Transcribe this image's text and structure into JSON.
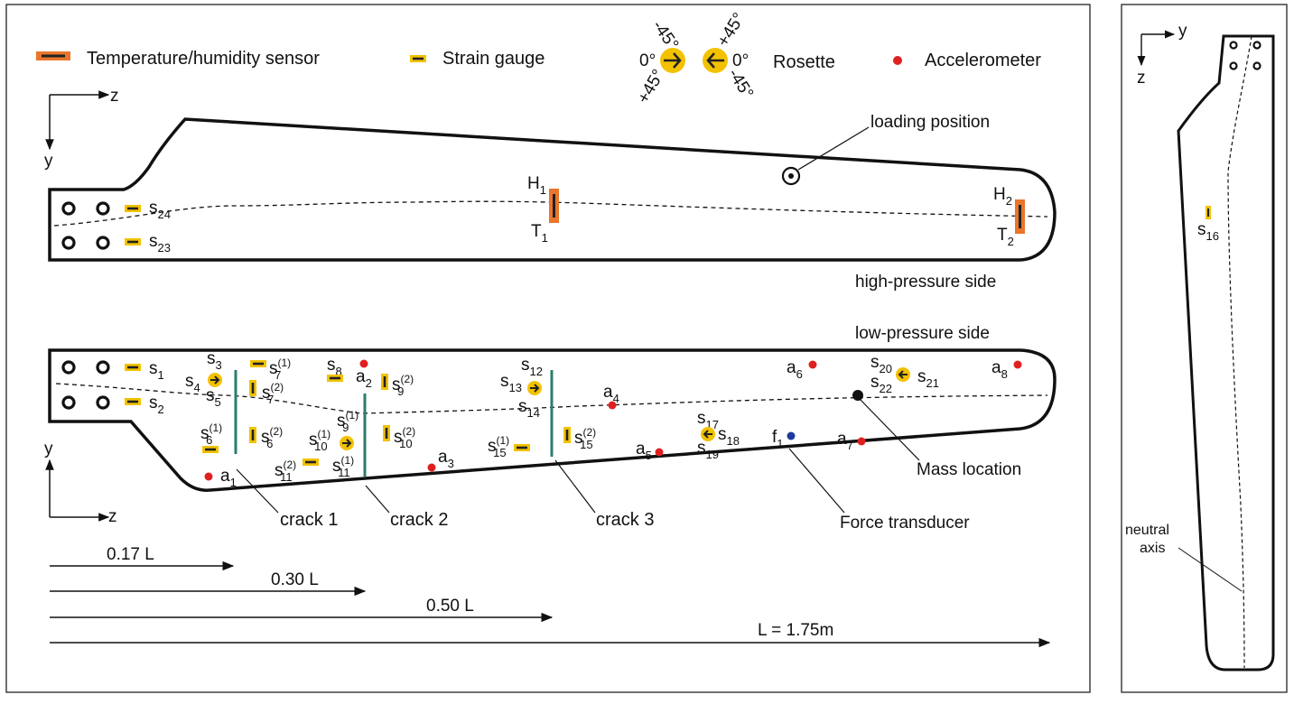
{
  "legend": {
    "temperature_sensor": "Temperature/humidity sensor",
    "strain_gauge": "Strain gauge",
    "rosette": "Rosette",
    "accelerometer": "Accelerometer",
    "rosette_angles": {
      "left_minus45": "-45°",
      "left_zero": "0°",
      "left_plus45": "+45°",
      "right_plus45": "+45°",
      "right_zero": "0°",
      "right_minus45": "-45°"
    }
  },
  "axes": {
    "z": "z",
    "y": "y"
  },
  "labels": {
    "loading_position": "loading position",
    "high_pressure_side": "high-pressure side",
    "low_pressure_side": "low-pressure side",
    "mass_location": "Mass location",
    "force_transducer": "Force transducer",
    "neutral_axis_line1": "neutral",
    "neutral_axis_line2": "axis"
  },
  "cracks": [
    "crack 1",
    "crack 2",
    "crack 3"
  ],
  "lengths": [
    "0.17 L",
    "0.30 L",
    "0.50 L",
    "L = 1.75m"
  ],
  "colors": {
    "sensor_orange": "#e8762b",
    "gauge_yellow": "#f2c200",
    "accelerometer_red": "#e02020",
    "force_blue": "#1f3a9a",
    "crack_green": "#2e7d6b",
    "outline": "#111111"
  }
}
